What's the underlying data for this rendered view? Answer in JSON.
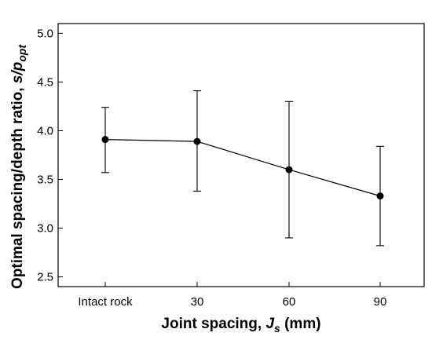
{
  "chart_data": {
    "type": "line",
    "categories": [
      "Intact rock",
      "30",
      "60",
      "90"
    ],
    "x_labels": [
      "Intact rock",
      "30",
      "60",
      "90"
    ],
    "series": [
      {
        "values": [
          3.91,
          3.89,
          3.6,
          3.33
        ],
        "error_upper": [
          4.24,
          4.41,
          4.3,
          3.84
        ],
        "error_lower": [
          3.57,
          3.38,
          2.9,
          2.82
        ]
      }
    ],
    "y_ticks": [
      "2.5",
      "3.0",
      "3.5",
      "4.0",
      "4.5",
      "5.0"
    ],
    "y_tick_values": [
      2.5,
      3.0,
      3.5,
      4.0,
      4.5,
      5.0
    ],
    "ylim": [
      2.4,
      5.1
    ],
    "xlabel": {
      "main": "Joint spacing, ",
      "var": "J",
      "sub": "s",
      "tail": " (mm)"
    },
    "ylabel": {
      "main": "Optimal spacing/depth ratio, ",
      "var": "s/p",
      "sub": "opt"
    },
    "grid": false,
    "legend": "none",
    "colors": {
      "marker": "#000000",
      "line": "#000000"
    }
  }
}
